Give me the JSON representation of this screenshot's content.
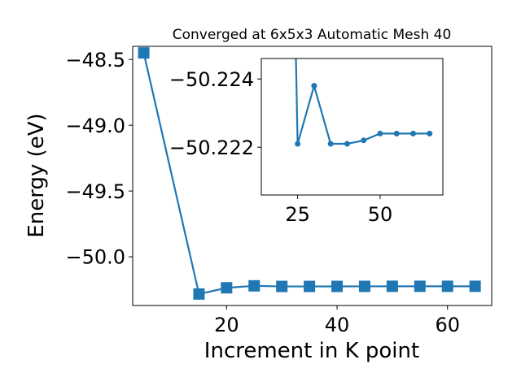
{
  "chart_data": [
    {
      "type": "line",
      "title": "Converged at 6x5x3 Automatic Mesh 40",
      "xlabel": "Increment in K point",
      "ylabel": "Energy (eV)",
      "xlim": [
        3,
        68
      ],
      "ylim": [
        -50.37,
        -48.4
      ],
      "xticks": [
        20,
        40,
        60
      ],
      "yticks": [
        -48.5,
        -49.0,
        -49.5,
        -50.0
      ],
      "ytick_labels": [
        "−48.5",
        "−49.0",
        "−49.5",
        "−50.0"
      ],
      "grid": false,
      "marker": "square",
      "color": "#1f77b4",
      "series": [
        {
          "x": [
            5,
            15,
            20,
            25,
            30,
            35,
            40,
            45,
            50,
            55,
            60,
            65
          ],
          "y": [
            -48.45,
            -50.2826,
            -50.2356,
            -50.2206,
            -50.2251,
            -50.2251,
            -50.2249,
            -50.2245,
            -50.2241,
            -50.2241,
            -50.2241,
            -50.2241
          ]
        }
      ]
    },
    {
      "type": "line",
      "title": "",
      "xlabel": "",
      "ylabel": "",
      "xlim": [
        14,
        69
      ],
      "ylim": [
        -50.2206,
        -50.2246
      ],
      "y_inverted": true,
      "xticks": [
        25,
        50
      ],
      "yticks": [
        -50.224,
        -50.222
      ],
      "ytick_labels": [
        "−50.224",
        "−50.222"
      ],
      "grid": false,
      "marker": "circle",
      "color": "#1f77b4",
      "series": [
        {
          "x": [
            24,
            25,
            30,
            35,
            40,
            45,
            50,
            55,
            60,
            65
          ],
          "y": [
            -50.227,
            -50.2221,
            -50.2238,
            -50.2221,
            -50.2221,
            -50.2222,
            -50.2224,
            -50.2224,
            -50.2224,
            -50.2224
          ]
        }
      ]
    }
  ]
}
